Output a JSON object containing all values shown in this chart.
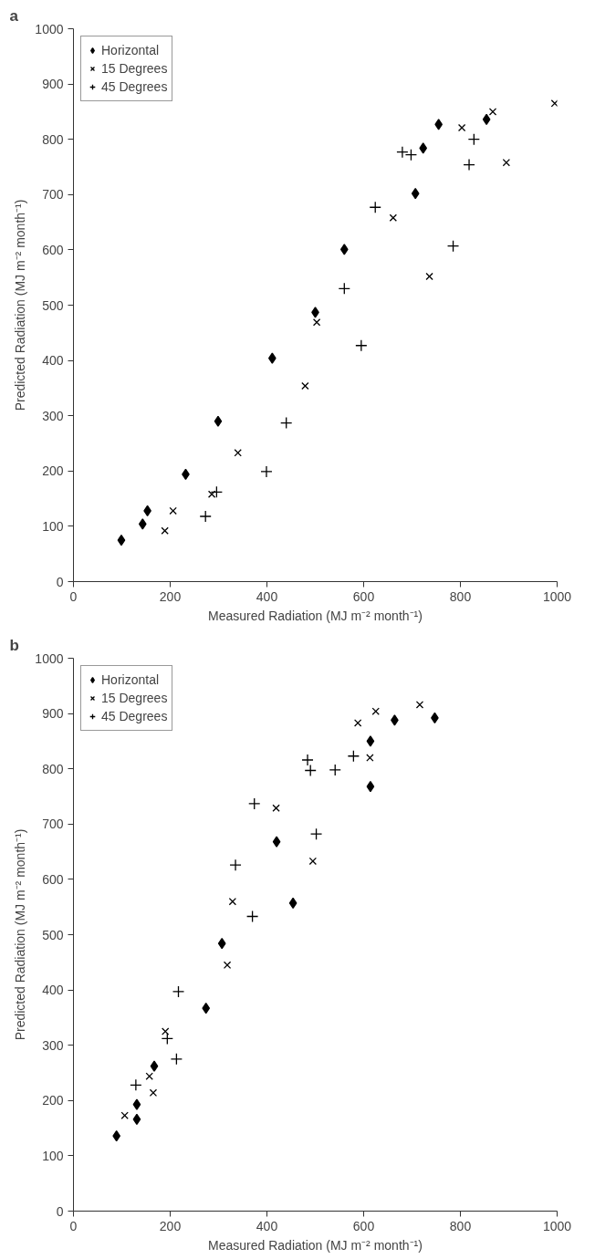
{
  "chart_data": [
    {
      "type": "scatter",
      "title": "a",
      "xlabel": "Measured Radiation (MJ m⁻² month⁻¹)",
      "ylabel": "Predicted Radiation (MJ m⁻² month⁻¹)",
      "xlim": [
        0,
        1000
      ],
      "ylim": [
        0,
        1000
      ],
      "xticks": [
        0,
        200,
        400,
        600,
        800,
        1000
      ],
      "yticks": [
        0,
        100,
        200,
        300,
        400,
        500,
        600,
        700,
        800,
        900,
        1000
      ],
      "grid": false,
      "legend": "top left",
      "series": [
        {
          "name": "Horizontal",
          "color": "#000000",
          "marker": "diamond",
          "x": [
            99,
            143,
            153,
            232,
            299,
            411,
            500,
            560,
            707,
            723,
            755,
            854
          ],
          "values": [
            75,
            104,
            128,
            194,
            290,
            404,
            487,
            601,
            702,
            784,
            827,
            836
          ]
        },
        {
          "name": "15 Degrees",
          "color": "#000000",
          "marker": "x",
          "x": [
            189,
            206,
            286,
            340,
            479,
            503,
            661,
            736,
            803,
            867,
            895,
            995
          ],
          "values": [
            92,
            128,
            158,
            233,
            354,
            469,
            658,
            552,
            821,
            850,
            758,
            865
          ]
        },
        {
          "name": "45 Degrees",
          "color": "#000000",
          "marker": "cross",
          "x": [
            273,
            296,
            399,
            440,
            560,
            595,
            624,
            680,
            698,
            785,
            818,
            828
          ],
          "values": [
            118,
            162,
            199,
            287,
            530,
            427,
            677,
            777,
            772,
            607,
            754,
            800
          ]
        }
      ]
    },
    {
      "type": "scatter",
      "title": "b",
      "xlabel": "Measured Radiation (MJ m⁻² month⁻¹)",
      "ylabel": "Predicted Radiation (MJ m⁻² month⁻¹)",
      "xlim": [
        0,
        1000
      ],
      "ylim": [
        0,
        1000
      ],
      "xticks": [
        0,
        200,
        400,
        600,
        800,
        1000
      ],
      "yticks": [
        0,
        100,
        200,
        300,
        400,
        500,
        600,
        700,
        800,
        900,
        1000
      ],
      "grid": false,
      "legend": "top left",
      "series": [
        {
          "name": "Horizontal",
          "color": "#000000",
          "marker": "diamond",
          "x": [
            89,
            131,
            131,
            167,
            274,
            307,
            420,
            454,
            614,
            614,
            664,
            747
          ],
          "values": [
            136,
            166,
            193,
            262,
            367,
            484,
            668,
            557,
            768,
            850,
            888,
            892
          ]
        },
        {
          "name": "15 Degrees",
          "color": "#000000",
          "marker": "x",
          "x": [
            106,
            157,
            165,
            190,
            318,
            329,
            419,
            495,
            588,
            613,
            625,
            716
          ],
          "values": [
            173,
            244,
            214,
            325,
            445,
            560,
            729,
            633,
            883,
            820,
            904,
            916
          ]
        },
        {
          "name": "45 Degrees",
          "color": "#000000",
          "marker": "cross",
          "x": [
            129,
            194,
            213,
            217,
            335,
            370,
            374,
            484,
            490,
            502,
            541,
            579
          ],
          "values": [
            228,
            312,
            275,
            397,
            626,
            533,
            737,
            816,
            797,
            682,
            798,
            823
          ]
        }
      ]
    }
  ]
}
